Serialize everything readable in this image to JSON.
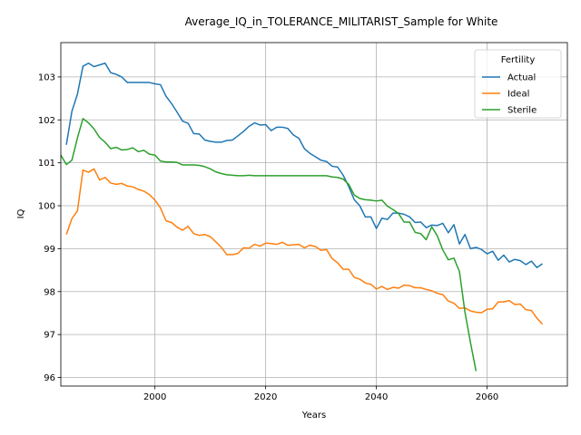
{
  "chart_data": {
    "type": "line",
    "title": "Average_IQ_in_TOLERANCE_MILITARIST_Sample for White",
    "xlabel": "Years",
    "ylabel": "IQ",
    "xlim": [
      1983,
      2074.5
    ],
    "ylim": [
      95.8,
      103.8
    ],
    "xticks": [
      1980,
      2000,
      2020,
      2040,
      2060
    ],
    "yticks": [
      96,
      97,
      98,
      99,
      100,
      101,
      102,
      103
    ],
    "grid": true,
    "legend": {
      "title": "Fertility",
      "position": "top-right"
    },
    "series": [
      {
        "name": "Actual",
        "color": "#1f77b4",
        "x": [
          1984,
          1985,
          1986,
          1987,
          1988,
          1989,
          1990,
          1991,
          1992,
          1993,
          1994,
          1995,
          1996,
          1997,
          1998,
          1999,
          2000,
          2001,
          2002,
          2003,
          2004,
          2005,
          2006,
          2007,
          2008,
          2009,
          2010,
          2011,
          2012,
          2013,
          2014,
          2015,
          2016,
          2017,
          2018,
          2019,
          2020,
          2021,
          2022,
          2023,
          2024,
          2025,
          2026,
          2027,
          2028,
          2029,
          2030,
          2031,
          2032,
          2033,
          2034,
          2035,
          2036,
          2037,
          2038,
          2039,
          2040,
          2041,
          2042,
          2043,
          2044,
          2045,
          2046,
          2047,
          2048,
          2049,
          2050,
          2051,
          2052,
          2053,
          2054,
          2055,
          2056,
          2057,
          2058,
          2059,
          2060,
          2061,
          2062,
          2063,
          2064,
          2065,
          2066,
          2067,
          2068,
          2069,
          2070
        ],
        "values": [
          101.42,
          102.2,
          102.6,
          103.25,
          103.32,
          103.24,
          103.28,
          103.32,
          103.1,
          103.06,
          103.0,
          102.87,
          102.87,
          102.87,
          102.87,
          102.87,
          102.84,
          102.82,
          102.55,
          102.38,
          102.18,
          101.97,
          101.92,
          101.68,
          101.67,
          101.53,
          101.5,
          101.48,
          101.48,
          101.52,
          101.53,
          101.63,
          101.73,
          101.85,
          101.93,
          101.88,
          101.89,
          101.75,
          101.83,
          101.83,
          101.8,
          101.65,
          101.57,
          101.33,
          101.22,
          101.14,
          101.06,
          101.03,
          100.92,
          100.9,
          100.71,
          100.45,
          100.14,
          100.0,
          99.74,
          99.74,
          99.47,
          99.71,
          99.68,
          99.83,
          99.83,
          99.8,
          99.74,
          99.61,
          99.62,
          99.49,
          99.55,
          99.54,
          99.59,
          99.37,
          99.56,
          99.11,
          99.33,
          99.0,
          99.03,
          98.98,
          98.88,
          98.94,
          98.73,
          98.85,
          98.69,
          98.75,
          98.72,
          98.63,
          98.71,
          98.56,
          98.65
        ]
      },
      {
        "name": "Ideal",
        "color": "#ff7f0e",
        "x": [
          1984,
          1985,
          1986,
          1987,
          1988,
          1989,
          1990,
          1991,
          1992,
          1993,
          1994,
          1995,
          1996,
          1997,
          1998,
          1999,
          2000,
          2001,
          2002,
          2003,
          2004,
          2005,
          2006,
          2007,
          2008,
          2009,
          2010,
          2011,
          2012,
          2013,
          2014,
          2015,
          2016,
          2017,
          2018,
          2019,
          2020,
          2021,
          2022,
          2023,
          2024,
          2025,
          2026,
          2027,
          2028,
          2029,
          2030,
          2031,
          2032,
          2033,
          2034,
          2035,
          2036,
          2037,
          2038,
          2039,
          2040,
          2041,
          2042,
          2043,
          2044,
          2045,
          2046,
          2047,
          2048,
          2049,
          2050,
          2051,
          2052,
          2053,
          2054,
          2055,
          2056,
          2057,
          2058,
          2059,
          2060,
          2061,
          2062,
          2063,
          2064,
          2065,
          2066,
          2067,
          2068,
          2069,
          2070
        ],
        "values": [
          99.33,
          99.7,
          99.88,
          100.83,
          100.78,
          100.86,
          100.6,
          100.66,
          100.53,
          100.5,
          100.52,
          100.46,
          100.44,
          100.38,
          100.34,
          100.26,
          100.13,
          99.95,
          99.65,
          99.61,
          99.5,
          99.43,
          99.52,
          99.35,
          99.31,
          99.33,
          99.28,
          99.16,
          99.03,
          98.86,
          98.86,
          98.89,
          99.02,
          99.01,
          99.1,
          99.06,
          99.13,
          99.12,
          99.1,
          99.15,
          99.08,
          99.09,
          99.1,
          99.02,
          99.08,
          99.05,
          98.96,
          98.98,
          98.77,
          98.67,
          98.52,
          98.52,
          98.33,
          98.29,
          98.2,
          98.17,
          98.06,
          98.12,
          98.05,
          98.1,
          98.08,
          98.15,
          98.14,
          98.09,
          98.09,
          98.05,
          98.02,
          97.96,
          97.93,
          97.78,
          97.73,
          97.61,
          97.62,
          97.55,
          97.52,
          97.51,
          97.59,
          97.6,
          97.76,
          97.76,
          97.79,
          97.7,
          97.71,
          97.58,
          97.56,
          97.38,
          97.24
        ]
      },
      {
        "name": "Sterile",
        "color": "#2ca02c",
        "x": [
          1983,
          1984,
          1985,
          1986,
          1987,
          1988,
          1989,
          1990,
          1991,
          1992,
          1993,
          1994,
          1995,
          1996,
          1997,
          1998,
          1999,
          2000,
          2001,
          2002,
          2003,
          2004,
          2005,
          2006,
          2007,
          2008,
          2009,
          2010,
          2011,
          2012,
          2013,
          2014,
          2015,
          2016,
          2017,
          2018,
          2019,
          2020,
          2021,
          2022,
          2023,
          2024,
          2025,
          2026,
          2027,
          2028,
          2029,
          2030,
          2031,
          2032,
          2033,
          2034,
          2035,
          2036,
          2037,
          2038,
          2039,
          2040,
          2041,
          2042,
          2043,
          2044,
          2045,
          2046,
          2047,
          2048,
          2049,
          2050,
          2051,
          2052,
          2053,
          2054,
          2055,
          2056,
          2057,
          2058
        ],
        "values": [
          101.18,
          100.96,
          101.06,
          101.58,
          102.03,
          101.93,
          101.79,
          101.59,
          101.48,
          101.33,
          101.36,
          101.3,
          101.31,
          101.35,
          101.26,
          101.29,
          101.2,
          101.18,
          101.04,
          101.02,
          101.02,
          101.01,
          100.95,
          100.95,
          100.95,
          100.94,
          100.91,
          100.86,
          100.79,
          100.75,
          100.72,
          100.71,
          100.7,
          100.7,
          100.71,
          100.7,
          100.7,
          100.7,
          100.7,
          100.7,
          100.7,
          100.7,
          100.7,
          100.7,
          100.7,
          100.7,
          100.7,
          100.7,
          100.7,
          100.67,
          100.66,
          100.62,
          100.5,
          100.25,
          100.17,
          100.14,
          100.13,
          100.11,
          100.13,
          99.99,
          99.91,
          99.82,
          99.62,
          99.62,
          99.38,
          99.35,
          99.21,
          99.51,
          99.3,
          98.97,
          98.74,
          98.78,
          98.47,
          97.52,
          96.81,
          96.15
        ]
      }
    ]
  }
}
